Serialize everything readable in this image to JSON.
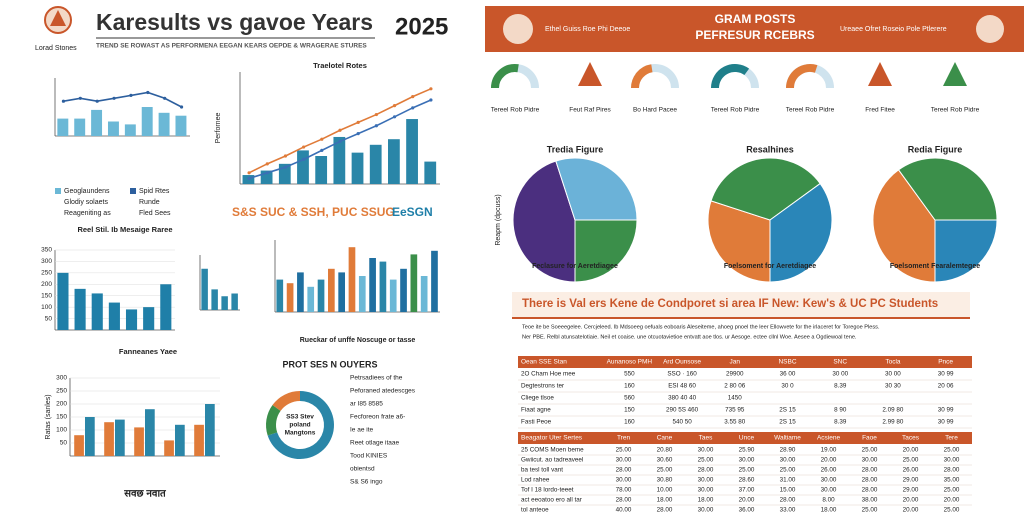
{
  "header": {
    "title": "Karesults vs gavoe Years",
    "year": "2025",
    "logo_text": "Lorad Stones",
    "subtitle": "TREND SE ROWAST AS PERFORMENA EEGAN KEARS OEPDE & WRAGERAE STURES"
  },
  "charts": [
    {
      "type": "bar",
      "ylim": [
        0,
        20
      ],
      "series": [
        {
          "name": "Geoglaundens",
          "color": "#6bb8d6",
          "values": [
            6,
            6,
            9,
            5,
            4,
            10,
            8,
            7
          ]
        },
        {
          "name": "Spid Rtes",
          "color": "#2d5f9e",
          "type": "line",
          "values": [
            12,
            13,
            12,
            13,
            14,
            15,
            13,
            10
          ]
        }
      ],
      "notes": [
        "Glodiy solaets",
        "Runde",
        "Reageniting as",
        "Fled Sees"
      ]
    },
    {
      "type": "bar",
      "title": "Traelotel Rotes",
      "ylabel": "Perfornee",
      "ylim": [
        0,
        100
      ],
      "series": [
        {
          "color": "#2a86a8",
          "values": [
            8,
            12,
            18,
            30,
            25,
            42,
            28,
            35,
            40,
            58,
            20
          ]
        },
        {
          "color": "#e07b39",
          "type": "line",
          "values": [
            10,
            18,
            25,
            33,
            40,
            48,
            55,
            62,
            70,
            78,
            85
          ]
        },
        {
          "color": "#3a6fb5",
          "type": "line",
          "values": [
            5,
            10,
            15,
            22,
            30,
            38,
            45,
            52,
            60,
            68,
            75
          ]
        }
      ],
      "banner": [
        "S&S SUC & SSH, PUC SSUG",
        "EeSGN"
      ]
    },
    {
      "type": "bar",
      "title": "Reel Stil. Ib Mesaige Raree",
      "ylim": [
        0,
        350
      ],
      "yticks": [
        50,
        100,
        150,
        200,
        250,
        300,
        350
      ],
      "series": [
        {
          "color": "#1f7fa8",
          "values": [
            250,
            180,
            160,
            120,
            90,
            100,
            200
          ]
        }
      ]
    },
    {
      "type": "bar",
      "ylim": [
        0,
        40
      ],
      "series": [
        {
          "color": "#2a86a8",
          "values": [
            30,
            15,
            10,
            12
          ]
        }
      ]
    },
    {
      "type": "bar",
      "caption": "Rueckar of unffe Noscuge or tasse",
      "ylim": [
        0,
        100
      ],
      "series": [
        {
          "color": "#2a86a8",
          "values": [
            45,
            40,
            55,
            35,
            45,
            60,
            55,
            90,
            50,
            75,
            70,
            45,
            60,
            80,
            50,
            85
          ]
        }
      ],
      "colors": [
        "#2a86a8",
        "#e07b39",
        "#1f6fa0",
        "#6bb8d6",
        "#2a86a8",
        "#e07b39",
        "#1f6fa0",
        "#e07b39",
        "#6bb8d6",
        "#1f6fa0",
        "#2a86a8",
        "#6bb8d6",
        "#1f6fa0",
        "#3b8f4a",
        "#6bb8d6",
        "#1f6fa0"
      ]
    },
    {
      "type": "bar",
      "title": "Fanneanes Yaee",
      "ylabel": "Ratas (sanles)",
      "footer": "सवछ नवात",
      "ylim": [
        0,
        300
      ],
      "yticks": [
        50,
        100,
        150,
        200,
        250,
        300
      ],
      "series": [
        {
          "color": "#e07b39",
          "values": [
            80,
            130,
            110,
            60,
            120
          ]
        },
        {
          "color": "#2a86a8",
          "values": [
            150,
            140,
            180,
            120,
            200
          ]
        }
      ]
    }
  ],
  "donut": {
    "title": "PROT SES N OUYERS",
    "center": [
      "SS3 Stev",
      "poland",
      "Mangtons"
    ],
    "values": [
      70,
      15,
      15
    ],
    "colors": [
      "#2a86a8",
      "#3b8f4a",
      "#e07b39"
    ],
    "texts": [
      "Petrsadiees of the",
      "Peforaned  atedescges",
      "ar I85 8585",
      "Fecforeon frate a6-",
      "Ie   ae ite",
      "Reet otlage itaae",
      "Tood KINIES",
      "obientsd",
      "S& S6 ingo"
    ]
  },
  "report": {
    "header": {
      "title": "GRAM POSTS",
      "subtitle": "PEFRESUR RCEBRS",
      "left_text": "Ethel Guiss Roe Phi Deeoe",
      "right_text": "Ureaee Ofret Roseio Pole Ptlerere"
    },
    "gauges": [
      {
        "kind": "arc",
        "value": 55,
        "color": "#3b8f4a",
        "label": "Tereel Rob Pidre"
      },
      {
        "kind": "icon",
        "label": "Feut Raf Pires"
      },
      {
        "kind": "arc",
        "value": 45,
        "color": "#e07b39",
        "label": "Bo Hard Pacee"
      },
      {
        "kind": "arc",
        "value": 70,
        "color": "#1f7f8a",
        "label": "Tereel Rob Pidre"
      },
      {
        "kind": "arc",
        "value": 60,
        "color": "#e07b39",
        "label": "Tereel Rob Pidre"
      },
      {
        "kind": "icon",
        "label": "Fred Fitee"
      },
      {
        "kind": "icon",
        "label": "Tereel Rob Pidre"
      }
    ],
    "pies": [
      {
        "title": "Tredia Figure",
        "values": [
          45,
          30,
          25
        ],
        "colors": [
          "#4b2f7f",
          "#6bb2d8",
          "#3b8f4a"
        ],
        "caption": "Feclasure for Aeretdiagee"
      },
      {
        "title": "Resalhines",
        "values": [
          30,
          35,
          35
        ],
        "colors": [
          "#e07b39",
          "#3b8f4a",
          "#2a86b8"
        ],
        "caption": "Foelsoment for Aeretdiagee"
      },
      {
        "title": "Redia Figure",
        "values": [
          40,
          35,
          25
        ],
        "colors": [
          "#e07b39",
          "#3b8f4a",
          "#2a86b8"
        ],
        "caption": "Foelsoment Fearalemtegee"
      }
    ],
    "pie_ylabel": "Reapm (dpcuss)",
    "banner": "There is Val ers Kene de Condporet si area IF New: Kew's & UC PC Students",
    "paragraph": [
      "Teoe ite be Soeeegelee. Cercjeleed. Ib Mdsoeeg oefuals eoboaris Aleseiteme,  ahoeg pnoel the leer Ellowvete for the irlaceret for Toregoe Pless.",
      "Ner PBE. Relbl atunsatelotiaie. Neil et coaise. une otcuotavietioe entvatt aoe tlos. ur Aesoge. ectee cllnl Woe. Aesee a Ogdiewoal tene."
    ],
    "table1": {
      "header": [
        "Oean SSE Stan",
        "Aunanoso PMH",
        "Ard Ounsose",
        "Jan",
        "NSBC",
        "SNC",
        "Tocla",
        "Pnce"
      ],
      "rows": [
        [
          "2O Cham Hoe mee",
          "550",
          "SSO · 160",
          "29900",
          "36 00",
          "30 00",
          "30 00",
          "30 99"
        ],
        [
          "Degtestrons ter",
          "160",
          "ESI 48 60",
          "2 80 06",
          "30 0",
          "8.39",
          "30 30",
          "20 06"
        ],
        [
          "Cliege tlsoe",
          "560",
          "380 40 40",
          "1450",
          "",
          "",
          "",
          ""
        ],
        [
          "Fiaat agne",
          "150",
          "290 5S 460",
          "735 95",
          "2S 15",
          "8 90",
          "2.09 80",
          "30 99"
        ],
        [
          "Fasti Peoe",
          "160",
          "540 50",
          "3.55 80",
          "2S 15",
          "8.39",
          "2.99 80",
          "30 99"
        ]
      ]
    },
    "table2": {
      "header": [
        "Beagator Uter Sertes",
        "Tren",
        "Cane",
        "Taes",
        "Unce",
        "Waltiame",
        "Acsiene",
        "Faoe",
        "Taces",
        "Tere"
      ],
      "rows": [
        [
          "25 COMS Moen beme",
          "25.00",
          "20.80",
          "30.00",
          "25.90",
          "28.90",
          "19.00",
          "25.00",
          "20.00",
          "25.00"
        ],
        [
          "Gwiicut. ao tadreaveel",
          "30.00",
          "30.60",
          "25.00",
          "30.00",
          "30.00",
          "20.00",
          "30.00",
          "25.00",
          "30.00"
        ],
        [
          "ba tesl toll vant",
          "28.00",
          "25.00",
          "28.00",
          "25.00",
          "25.00",
          "26.00",
          "28.00",
          "26.00",
          "28.00"
        ],
        [
          "Lod rahee",
          "30.00",
          "30.80",
          "30.00",
          "28.60",
          "31.00",
          "30.00",
          "28.00",
          "29.00",
          "35.00"
        ],
        [
          "Tof I 18 lordo-teeet",
          "78.00",
          "10.00",
          "30.00",
          "37.00",
          "15.00",
          "30.00",
          "28.00",
          "29.00",
          "25.00"
        ],
        [
          "act eeoatoo ero all tar",
          "28.00",
          "18.00",
          "18.00",
          "20.00",
          "28.00",
          "8.00",
          "38.00",
          "20.00",
          "20.00"
        ],
        [
          "tol anteoe",
          "40.00",
          "28.00",
          "30.00",
          "36.00",
          "33.00",
          "18.00",
          "25.00",
          "20.00",
          "25.00"
        ]
      ]
    }
  }
}
